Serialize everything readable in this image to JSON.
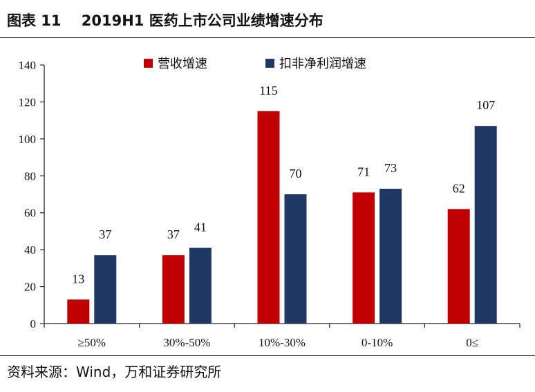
{
  "header": {
    "title": "图表 11    2019H1 医药上市公司业绩增速分布"
  },
  "footer": {
    "source": "资料来源：Wind，万和证券研究所"
  },
  "chart_data": {
    "type": "bar",
    "categories": [
      "≥50%",
      "30%-50%",
      "10%-30%",
      "0-10%",
      "0≤"
    ],
    "series": [
      {
        "name": "营收增速",
        "color": "#C00000",
        "values": [
          13,
          37,
          115,
          71,
          62
        ]
      },
      {
        "name": "扣非净利润增速",
        "color": "#1F3864",
        "values": [
          37,
          41,
          70,
          73,
          107
        ]
      }
    ],
    "ylim": [
      0,
      140
    ],
    "yticks": [
      0,
      20,
      40,
      60,
      80,
      100,
      120,
      140
    ],
    "legend": "top-center",
    "grid": false
  }
}
